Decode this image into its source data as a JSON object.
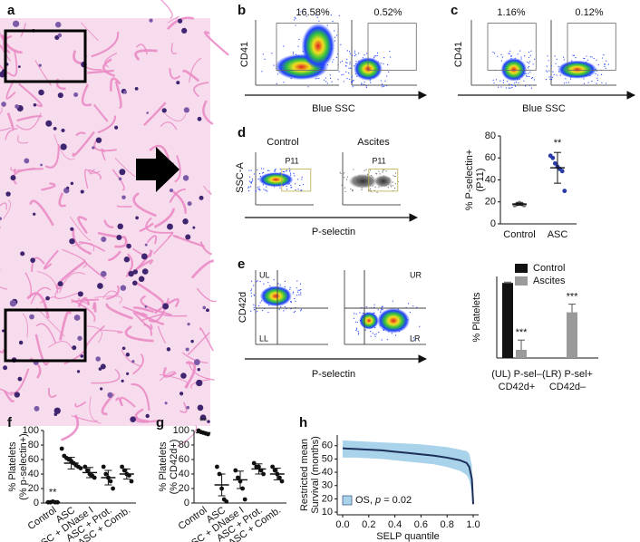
{
  "panel_labels": [
    "a",
    "b",
    "c",
    "d",
    "e",
    "f",
    "g",
    "h"
  ],
  "flow": {
    "b": {
      "gates": [
        "16.58%",
        "0.52%"
      ],
      "ylabel": "CD41",
      "xlabel": "Blue SSC"
    },
    "c": {
      "gates": [
        "1.16%",
        "0.12%"
      ],
      "ylabel": "CD41",
      "xlabel": "Blue SSC"
    },
    "d": {
      "titles": [
        "Control",
        "Ascites"
      ],
      "gates": [
        "P11",
        "P11"
      ],
      "ylabel": "SSC-A",
      "xlabel": "P-selectin"
    },
    "e": {
      "quadrants": [
        [
          "UL",
          "LL"
        ],
        [
          "UR",
          "LR"
        ]
      ],
      "ylabel": "CD42d",
      "xlabel": "P-selectin"
    }
  },
  "chart_data": [
    {
      "type": "dot",
      "ylabel": [
        "% P-selectin+",
        "(P11)"
      ],
      "categories": [
        "Control",
        "ASC"
      ],
      "points": [
        [
          17,
          18,
          19,
          18,
          17
        ],
        [
          62,
          60,
          55,
          52,
          50,
          48,
          30
        ]
      ],
      "means": [
        18,
        51
      ],
      "errors": [
        1,
        14
      ],
      "marker_colors": [
        "#777777",
        "#2a3aa8"
      ],
      "annotations": [
        null,
        "**"
      ],
      "ylim": [
        0,
        80
      ],
      "yticks": [
        0,
        20,
        40,
        60,
        80
      ]
    },
    {
      "type": "bar",
      "ylabel": [
        "% Platelets"
      ],
      "categories": [
        [
          "(UL) P-sel–",
          "CD42d+"
        ],
        [
          "(LR) P-sel+",
          "CD42d–"
        ]
      ],
      "series": [
        {
          "name": "Control",
          "color": "#111111",
          "values": [
            92,
            0
          ],
          "errors": [
            1,
            0
          ]
        },
        {
          "name": "Ascites",
          "color": "#9a9a9a",
          "values": [
            10,
            56
          ],
          "errors": [
            12,
            10
          ],
          "annotations": [
            "***",
            "***"
          ]
        }
      ],
      "ylim": [
        0,
        100
      ]
    },
    {
      "type": "dot",
      "ylabel": [
        "% Platelets",
        "(% p-selectin+)"
      ],
      "categories": [
        "Control",
        "ASC",
        "ASC + DNase I",
        "ASC + Prot.",
        "ASC + Comb."
      ],
      "points": [
        [
          1,
          1,
          2,
          1,
          1
        ],
        [
          75,
          65,
          62,
          60,
          58,
          55,
          52,
          50,
          48
        ],
        [
          50,
          45,
          40,
          38,
          35
        ],
        [
          50,
          40,
          35,
          30,
          20
        ],
        [
          50,
          45,
          40,
          38,
          30
        ]
      ],
      "means": [
        1,
        55,
        42,
        35,
        40
      ],
      "errors": [
        1,
        8,
        7,
        10,
        7
      ],
      "marker_colors": [
        "#111111",
        "#111111",
        "#111111",
        "#111111",
        "#111111"
      ],
      "annotations": [
        "**",
        null,
        null,
        null,
        null
      ],
      "ylim": [
        0,
        100
      ],
      "yticks": [
        0,
        20,
        40,
        60,
        80,
        100
      ]
    },
    {
      "type": "dot",
      "ylabel": [
        "% Platelets",
        "(% CD42d+)"
      ],
      "categories": [
        "Control",
        "ASC",
        "ASC + DNase I",
        "ASC + Prot.",
        "ASC + Comb."
      ],
      "points": [
        [
          100,
          98,
          97,
          96,
          95
        ],
        [
          50,
          40,
          20,
          5,
          2
        ],
        [
          45,
          35,
          30,
          20,
          5
        ],
        [
          55,
          50,
          50,
          45,
          40
        ],
        [
          50,
          45,
          40,
          35,
          30
        ]
      ],
      "means": [
        97,
        25,
        32,
        47,
        40
      ],
      "errors": [
        1,
        15,
        12,
        7,
        8
      ],
      "marker_colors": [
        "#111111",
        "#111111",
        "#111111",
        "#111111",
        "#111111"
      ],
      "annotations": [
        "**",
        null,
        null,
        null,
        null
      ],
      "ylim": [
        0,
        100
      ],
      "yticks": [
        0,
        20,
        40,
        60,
        80,
        100
      ]
    },
    {
      "type": "line",
      "ylabel": [
        "Restricted mean",
        "Survival (months)"
      ],
      "xlabel": "SELP quantile",
      "x": [
        0,
        0.1,
        0.2,
        0.3,
        0.4,
        0.5,
        0.6,
        0.7,
        0.8,
        0.9,
        0.95,
        0.97,
        0.99,
        1.0
      ],
      "series": [
        {
          "name": "OS",
          "color": "#1b2f5a",
          "values": [
            58,
            57.5,
            57,
            56.5,
            55.5,
            54.5,
            53.5,
            52.5,
            51,
            49,
            47,
            44,
            35,
            16
          ]
        }
      ],
      "band": {
        "color": "#a9d3ea",
        "lower": [
          51,
          51,
          50.5,
          50,
          49,
          48,
          47,
          46,
          44,
          41,
          38,
          34,
          25,
          15
        ],
        "upper": [
          64,
          63.5,
          63,
          62.5,
          62,
          61.5,
          61,
          60,
          59,
          57,
          56,
          54,
          45,
          17
        ]
      },
      "legend_parts": [
        "OS, ",
        "p",
        " = 0.02"
      ],
      "xlim": [
        0,
        1
      ],
      "xticks": [
        {
          "value": 0,
          "label": "0.0"
        },
        {
          "value": 0.2,
          "label": "0.2"
        },
        {
          "value": 0.4,
          "label": "0.4"
        },
        {
          "value": 0.6,
          "label": "0.6"
        },
        {
          "value": 0.8,
          "label": "0.8"
        },
        {
          "value": 1,
          "label": "1.0"
        }
      ],
      "ylim": [
        8,
        68
      ],
      "yticks": [
        10,
        20,
        30,
        40,
        50,
        60
      ]
    }
  ]
}
